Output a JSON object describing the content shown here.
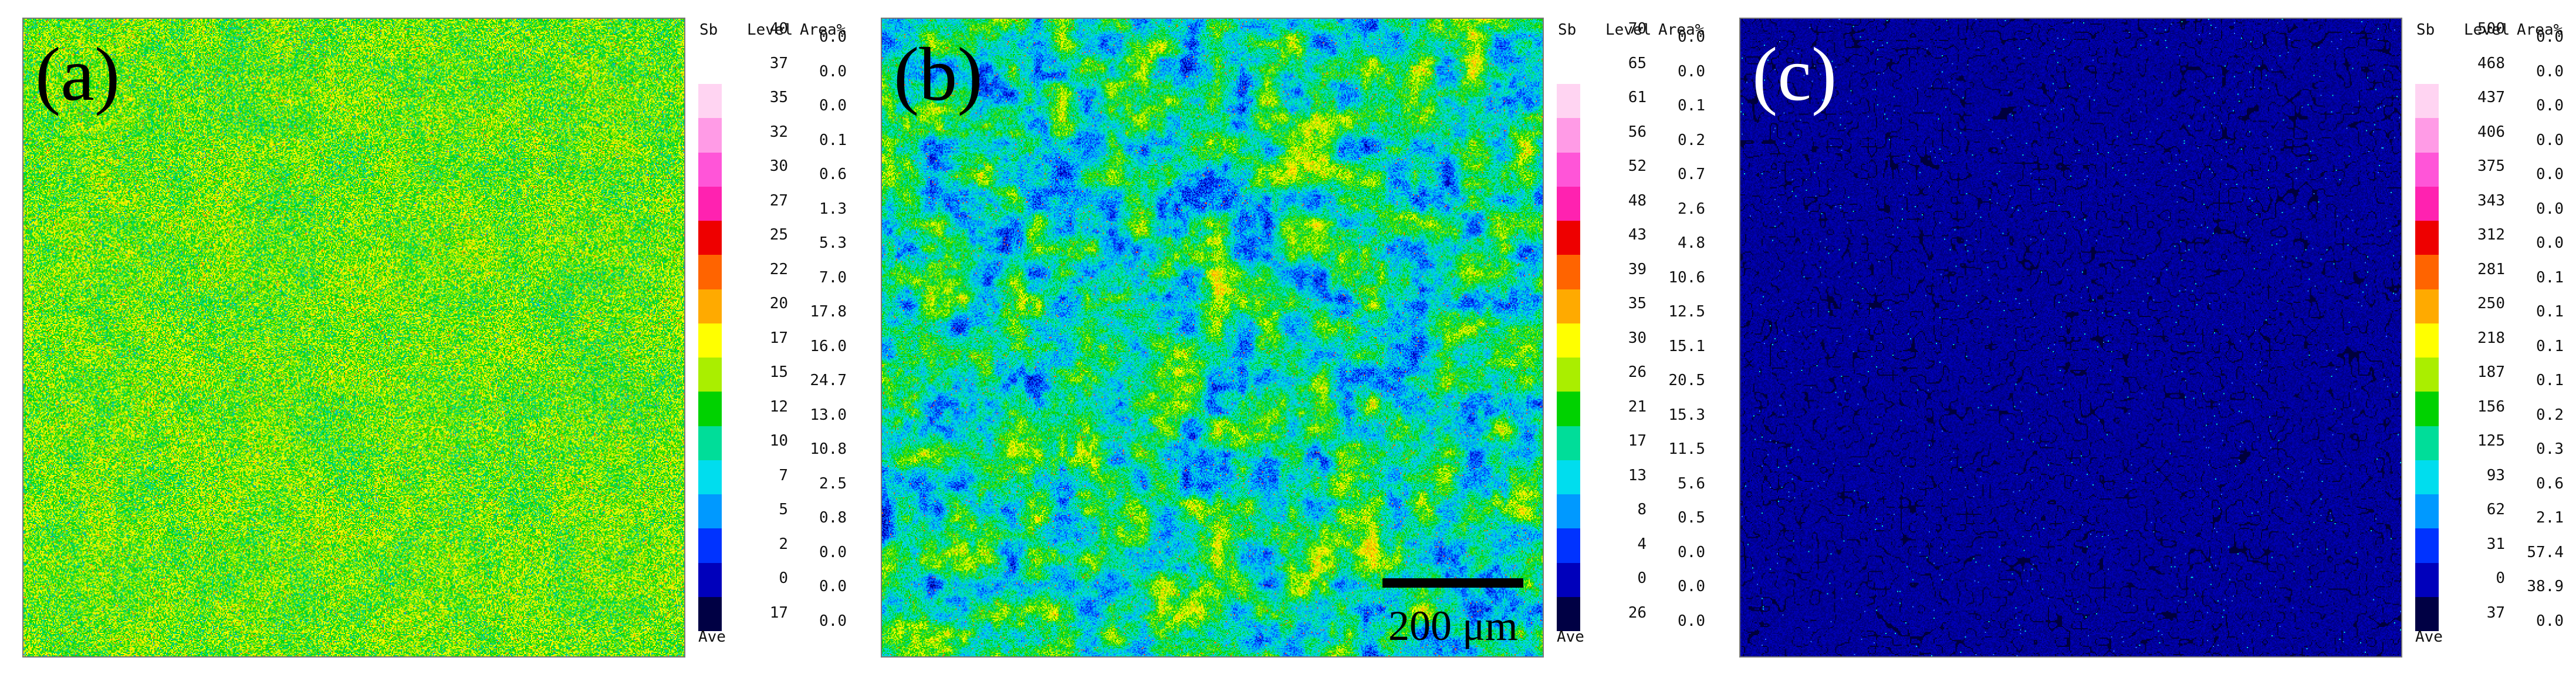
{
  "legend_header": {
    "element": "Sb",
    "level": "Level",
    "area": "Area%"
  },
  "ave_label": "Ave",
  "scale_bar": "200 μm",
  "panels": [
    {
      "label": "(a)",
      "levels": [
        "40",
        "37",
        "35",
        "32",
        "30",
        "27",
        "25",
        "22",
        "20",
        "17",
        "15",
        "12",
        "10",
        "7",
        "5",
        "2",
        "0",
        "17"
      ],
      "areas": [
        "0.0",
        "0.0",
        "0.0",
        "0.1",
        "0.6",
        "1.3",
        "5.3",
        "7.0",
        "17.8",
        "16.0",
        "24.7",
        "13.0",
        "10.8",
        "2.5",
        "0.8",
        "0.0",
        "0.0",
        "0.0"
      ]
    },
    {
      "label": "(b)",
      "levels": [
        "70",
        "65",
        "61",
        "56",
        "52",
        "48",
        "43",
        "39",
        "35",
        "30",
        "26",
        "21",
        "17",
        "13",
        "8",
        "4",
        "0",
        "26"
      ],
      "areas": [
        "0.0",
        "0.0",
        "0.1",
        "0.2",
        "0.7",
        "2.6",
        "4.8",
        "10.6",
        "12.5",
        "15.1",
        "20.5",
        "15.3",
        "11.5",
        "5.6",
        "0.5",
        "0.0",
        "0.0",
        "0.0"
      ]
    },
    {
      "label": "(c)",
      "levels": [
        "500",
        "468",
        "437",
        "406",
        "375",
        "343",
        "312",
        "281",
        "250",
        "218",
        "187",
        "156",
        "125",
        "93",
        "62",
        "31",
        "0",
        "37"
      ],
      "areas": [
        "0.0",
        "0.0",
        "0.0",
        "0.0",
        "0.0",
        "0.0",
        "0.0",
        "0.1",
        "0.1",
        "0.1",
        "0.1",
        "0.2",
        "0.3",
        "0.6",
        "2.1",
        "57.4",
        "38.9",
        "0.0"
      ]
    }
  ],
  "colorscale": [
    "#ffffff",
    "#ffd4f2",
    "#ff9be6",
    "#ff55d8",
    "#ff22b0",
    "#ee0000",
    "#ff6400",
    "#ffaa00",
    "#ffff00",
    "#aaee00",
    "#00d200",
    "#00dd99",
    "#00ddee",
    "#0099ff",
    "#0033ff",
    "#0000bb",
    "#000044"
  ]
}
